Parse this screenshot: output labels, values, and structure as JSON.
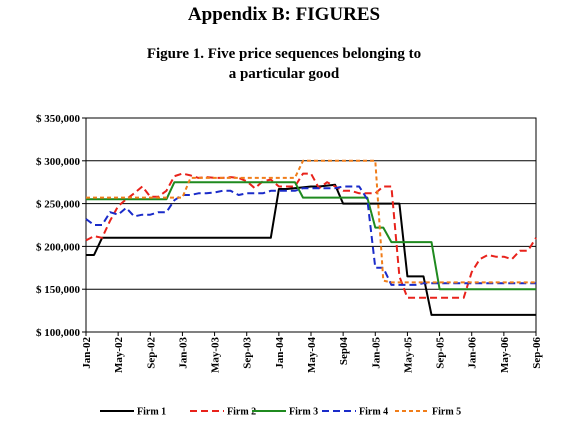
{
  "page": {
    "appendix_title": "Appendix B: FIGURES",
    "figure_title_line1": "Figure 1. Five price sequences belonging to",
    "figure_title_line2": "a particular good"
  },
  "chart_data": {
    "type": "line",
    "title": "Figure 1. Five price sequences belonging to a particular good",
    "xlabel": "",
    "ylabel": "",
    "x_unit": "month",
    "x_range": [
      "2002-01",
      "2006-09"
    ],
    "ylim": [
      100000,
      350000
    ],
    "y_ticks": [
      {
        "value": 100000,
        "label": "$ 100,000"
      },
      {
        "value": 150000,
        "label": "$ 150,000"
      },
      {
        "value": 200000,
        "label": "$ 200,000"
      },
      {
        "value": 250000,
        "label": "$ 250,000"
      },
      {
        "value": 300000,
        "label": "$ 300,000"
      },
      {
        "value": 350000,
        "label": "$ 350,000"
      }
    ],
    "x_ticks": [
      {
        "value": "2002-01",
        "label": "Jan-02"
      },
      {
        "value": "2002-05",
        "label": "May-02"
      },
      {
        "value": "2002-09",
        "label": "Sep-02"
      },
      {
        "value": "2003-01",
        "label": "Jan-03"
      },
      {
        "value": "2003-05",
        "label": "May-03"
      },
      {
        "value": "2003-09",
        "label": "Sep-03"
      },
      {
        "value": "2004-01",
        "label": "Jan-04"
      },
      {
        "value": "2004-05",
        "label": "May-04"
      },
      {
        "value": "2004-09",
        "label": "Sep04"
      },
      {
        "value": "2005-01",
        "label": "Jan-05"
      },
      {
        "value": "2005-05",
        "label": "May-05"
      },
      {
        "value": "2005-09",
        "label": "Sep-05"
      },
      {
        "value": "2006-01",
        "label": "Jan-06"
      },
      {
        "value": "2006-05",
        "label": "May-06"
      },
      {
        "value": "2006-09",
        "label": "Sep-06"
      }
    ],
    "grid": {
      "horizontal": true,
      "vertical": false
    },
    "legend_position": "bottom",
    "series": [
      {
        "name": "Firm 1",
        "color": "#000000",
        "dash": "solid",
        "points": [
          [
            "2002-01",
            190000
          ],
          [
            "2002-02",
            190000
          ],
          [
            "2002-03",
            210000
          ],
          [
            "2002-04",
            210000
          ],
          [
            "2003-11",
            210000
          ],
          [
            "2003-12",
            210000
          ],
          [
            "2004-01",
            267000
          ],
          [
            "2004-02",
            267000
          ],
          [
            "2004-05",
            270000
          ],
          [
            "2004-06",
            270000
          ],
          [
            "2004-08",
            272000
          ],
          [
            "2004-09",
            250000
          ],
          [
            "2004-11",
            250000
          ],
          [
            "2004-12",
            250000
          ],
          [
            "2005-04",
            250000
          ],
          [
            "2005-05",
            165000
          ],
          [
            "2005-06",
            165000
          ],
          [
            "2005-07",
            165000
          ],
          [
            "2005-08",
            120000
          ],
          [
            "2005-09",
            120000
          ],
          [
            "2006-09",
            120000
          ]
        ]
      },
      {
        "name": "Firm 2",
        "color": "#e8221b",
        "dash": "long",
        "points": [
          [
            "2002-01",
            207000
          ],
          [
            "2002-02",
            212000
          ],
          [
            "2002-03",
            210000
          ],
          [
            "2002-04",
            230000
          ],
          [
            "2002-05",
            247000
          ],
          [
            "2002-06",
            255000
          ],
          [
            "2002-07",
            262000
          ],
          [
            "2002-08",
            270000
          ],
          [
            "2002-09",
            258000
          ],
          [
            "2002-10",
            258000
          ],
          [
            "2002-11",
            265000
          ],
          [
            "2002-12",
            282000
          ],
          [
            "2003-01",
            285000
          ],
          [
            "2003-02",
            283000
          ],
          [
            "2003-03",
            280000
          ],
          [
            "2003-04",
            281000
          ],
          [
            "2003-05",
            280000
          ],
          [
            "2003-06",
            280000
          ],
          [
            "2003-07",
            281000
          ],
          [
            "2003-08",
            280000
          ],
          [
            "2003-09",
            276000
          ],
          [
            "2003-10",
            268000
          ],
          [
            "2003-11",
            276000
          ],
          [
            "2003-12",
            278000
          ],
          [
            "2004-01",
            270000
          ],
          [
            "2004-02",
            270000
          ],
          [
            "2004-03",
            270000
          ],
          [
            "2004-04",
            285000
          ],
          [
            "2004-05",
            285000
          ],
          [
            "2004-06",
            268000
          ],
          [
            "2004-07",
            275000
          ],
          [
            "2004-08",
            270000
          ],
          [
            "2004-09",
            265000
          ],
          [
            "2004-10",
            265000
          ],
          [
            "2004-11",
            262000
          ],
          [
            "2004-12",
            262000
          ],
          [
            "2005-01",
            262000
          ],
          [
            "2005-02",
            270000
          ],
          [
            "2005-03",
            270000
          ],
          [
            "2005-04",
            165000
          ],
          [
            "2005-05",
            140000
          ],
          [
            "2005-06",
            140000
          ],
          [
            "2005-07",
            140000
          ],
          [
            "2005-08",
            140000
          ],
          [
            "2005-09",
            140000
          ],
          [
            "2005-10",
            140000
          ],
          [
            "2005-11",
            140000
          ],
          [
            "2005-12",
            140000
          ],
          [
            "2006-01",
            170000
          ],
          [
            "2006-02",
            185000
          ],
          [
            "2006-03",
            190000
          ],
          [
            "2006-04",
            188000
          ],
          [
            "2006-05",
            188000
          ],
          [
            "2006-06",
            185000
          ],
          [
            "2006-07",
            195000
          ],
          [
            "2006-08",
            195000
          ],
          [
            "2006-09",
            210000
          ]
        ]
      },
      {
        "name": "Firm 3",
        "color": "#1f8a1f",
        "dash": "solid",
        "points": [
          [
            "2002-01",
            255000
          ],
          [
            "2002-02",
            255000
          ],
          [
            "2002-11",
            255000
          ],
          [
            "2002-12",
            275000
          ],
          [
            "2003-01",
            275000
          ],
          [
            "2004-03",
            275000
          ],
          [
            "2004-04",
            257000
          ],
          [
            "2004-05",
            257000
          ],
          [
            "2004-11",
            257000
          ],
          [
            "2004-12",
            257000
          ],
          [
            "2005-01",
            222000
          ],
          [
            "2005-02",
            222000
          ],
          [
            "2005-03",
            205000
          ],
          [
            "2005-04",
            205000
          ],
          [
            "2005-05",
            205000
          ],
          [
            "2005-06",
            205000
          ],
          [
            "2005-07",
            205000
          ],
          [
            "2005-08",
            205000
          ],
          [
            "2005-09",
            150000
          ],
          [
            "2005-10",
            150000
          ],
          [
            "2006-09",
            150000
          ]
        ]
      },
      {
        "name": "Firm 4",
        "color": "#1a2bc9",
        "dash": "long",
        "points": [
          [
            "2002-01",
            232000
          ],
          [
            "2002-02",
            225000
          ],
          [
            "2002-03",
            225000
          ],
          [
            "2002-04",
            240000
          ],
          [
            "2002-05",
            237000
          ],
          [
            "2002-06",
            245000
          ],
          [
            "2002-07",
            235000
          ],
          [
            "2002-08",
            237000
          ],
          [
            "2002-09",
            237000
          ],
          [
            "2002-10",
            240000
          ],
          [
            "2002-11",
            240000
          ],
          [
            "2002-12",
            254000
          ],
          [
            "2003-01",
            260000
          ],
          [
            "2003-02",
            260000
          ],
          [
            "2003-03",
            262000
          ],
          [
            "2003-04",
            262000
          ],
          [
            "2003-05",
            263000
          ],
          [
            "2003-06",
            265000
          ],
          [
            "2003-07",
            265000
          ],
          [
            "2003-08",
            260000
          ],
          [
            "2003-09",
            262000
          ],
          [
            "2003-10",
            262000
          ],
          [
            "2003-11",
            262000
          ],
          [
            "2003-12",
            265000
          ],
          [
            "2004-01",
            265000
          ],
          [
            "2004-02",
            265000
          ],
          [
            "2004-03",
            265000
          ],
          [
            "2004-04",
            268000
          ],
          [
            "2004-05",
            268000
          ],
          [
            "2004-06",
            268000
          ],
          [
            "2004-07",
            268000
          ],
          [
            "2004-08",
            268000
          ],
          [
            "2004-09",
            270000
          ],
          [
            "2004-10",
            270000
          ],
          [
            "2004-11",
            270000
          ],
          [
            "2004-12",
            255000
          ],
          [
            "2005-01",
            175000
          ],
          [
            "2005-02",
            175000
          ],
          [
            "2005-03",
            155000
          ],
          [
            "2005-04",
            155000
          ],
          [
            "2005-05",
            155000
          ],
          [
            "2005-06",
            155000
          ],
          [
            "2005-07",
            157000
          ],
          [
            "2005-08",
            157000
          ],
          [
            "2006-09",
            157000
          ]
        ]
      },
      {
        "name": "Firm 5",
        "color": "#f07d1a",
        "dash": "short",
        "points": [
          [
            "2002-01",
            257000
          ],
          [
            "2002-02",
            257000
          ],
          [
            "2003-01",
            257000
          ],
          [
            "2003-02",
            280000
          ],
          [
            "2003-03",
            280000
          ],
          [
            "2004-01",
            280000
          ],
          [
            "2004-02",
            280000
          ],
          [
            "2004-03",
            280000
          ],
          [
            "2004-04",
            300000
          ],
          [
            "2004-05",
            300000
          ],
          [
            "2004-12",
            300000
          ],
          [
            "2005-01",
            300000
          ],
          [
            "2005-02",
            160000
          ],
          [
            "2005-03",
            158000
          ],
          [
            "2006-09",
            158000
          ]
        ]
      }
    ]
  }
}
